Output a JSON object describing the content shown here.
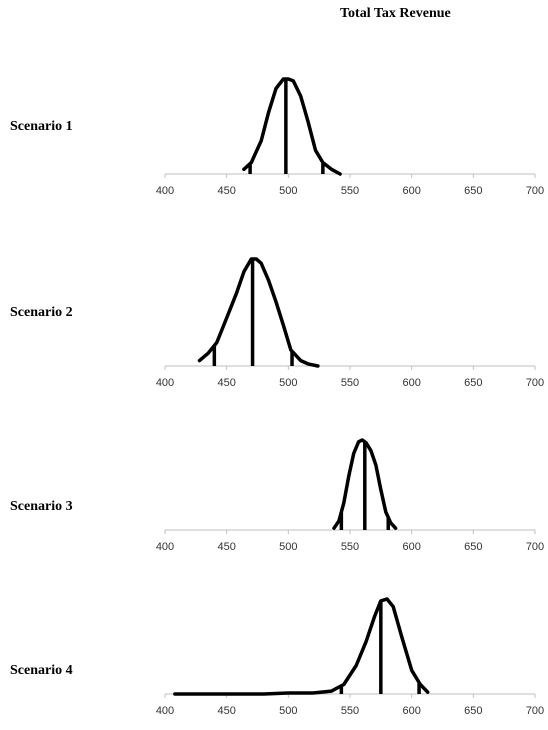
{
  "title": "Total Tax Revenue",
  "chart_data": {
    "type": "line",
    "title": "Total Tax Revenue",
    "xlim": [
      400,
      700
    ],
    "x_ticks": [
      400,
      450,
      500,
      550,
      600,
      650,
      700
    ],
    "xlabel": "",
    "ylabel": "",
    "grid": false,
    "series": [
      {
        "name": "Scenario 1",
        "x": [
          464,
          470,
          478,
          484,
          490,
          496,
          500,
          504,
          510,
          516,
          522,
          528,
          535,
          542
        ],
        "y": [
          0.05,
          0.12,
          0.35,
          0.65,
          0.9,
          1.0,
          1.0,
          0.98,
          0.82,
          0.55,
          0.25,
          0.12,
          0.05,
          0.0
        ],
        "markers": [
          469,
          498,
          528
        ]
      },
      {
        "name": "Scenario 2",
        "x": [
          428,
          435,
          442,
          450,
          458,
          464,
          470,
          474,
          478,
          484,
          490,
          496,
          502,
          510,
          516,
          524
        ],
        "y": [
          0.05,
          0.12,
          0.22,
          0.45,
          0.68,
          0.88,
          1.0,
          1.0,
          0.96,
          0.8,
          0.6,
          0.38,
          0.15,
          0.05,
          0.02,
          0.0
        ],
        "markers": [
          440,
          471,
          503
        ]
      },
      {
        "name": "Scenario 3",
        "x": [
          537,
          541,
          545,
          549,
          553,
          557,
          560,
          563,
          567,
          571,
          575,
          579,
          583,
          587
        ],
        "y": [
          0.02,
          0.1,
          0.3,
          0.6,
          0.85,
          0.98,
          1.0,
          0.97,
          0.88,
          0.72,
          0.45,
          0.2,
          0.08,
          0.02
        ],
        "markers": [
          543,
          562,
          581
        ]
      },
      {
        "name": "Scenario 4",
        "x": [
          408,
          440,
          480,
          500,
          520,
          535,
          545,
          555,
          563,
          570,
          575,
          580,
          585,
          592,
          600,
          607,
          613
        ],
        "y": [
          0.0,
          0.0,
          0.0,
          0.01,
          0.01,
          0.03,
          0.1,
          0.3,
          0.55,
          0.82,
          0.98,
          1.0,
          0.92,
          0.6,
          0.25,
          0.1,
          0.02
        ],
        "markers": [
          543,
          575,
          606
        ]
      }
    ]
  }
}
